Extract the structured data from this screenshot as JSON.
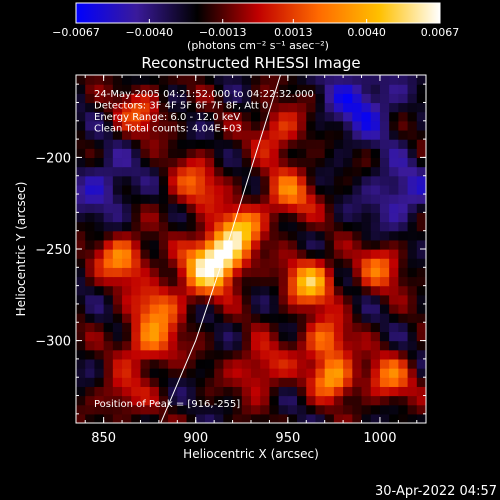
{
  "chart_data": {
    "type": "heatmap",
    "title": "Reconstructed RHESSI Image",
    "xlabel": "Heliocentric X (arcsec)",
    "ylabel": "Heliocentric Y (arcsec)",
    "xlim": [
      835,
      1025
    ],
    "ylim": [
      -345,
      -155
    ],
    "x_ticks": [
      850,
      900,
      950,
      1000
    ],
    "y_ticks": [
      -200,
      -250,
      -300
    ],
    "x_tick_labels": [
      "850",
      "900",
      "950",
      "1000"
    ],
    "y_tick_labels": [
      "−200",
      "−250",
      "−300"
    ],
    "colorbar": {
      "range": [
        -0.0067,
        0.0067
      ],
      "ticks": [
        -0.0067,
        -0.004,
        -0.0013,
        0.0013,
        0.004,
        0.0067
      ],
      "tick_labels": [
        "−0.0067",
        "−0.0040",
        "−0.0013",
        "0.0013",
        "0.0040",
        "0.0067"
      ],
      "unit_label": "(photons cm⁻² s⁻¹ asec⁻²)",
      "colors": [
        "#0000ff",
        "#3a1a9a",
        "#000000",
        "#c00000",
        "#ff6a00",
        "#ffc000",
        "#ffffff"
      ]
    },
    "annotations": [
      "24-May-2005 04:21:52.000 to 04:22:32.000",
      "Detectors: 3F 4F 5F 6F 7F 8F, Att 0",
      "Energy Range: 6.0 - 12.0 keV",
      "Clean     Total counts: 4.04E+03"
    ],
    "peak_label": "Position of Peak = [916,-255]",
    "peak": [
      916,
      -255
    ],
    "limb_points": [
      [
        881,
        -345
      ],
      [
        900,
        -300
      ],
      [
        915,
        -255
      ],
      [
        932,
        -200
      ],
      [
        946,
        -155
      ]
    ],
    "sources": [
      {
        "x": 915,
        "y": -252,
        "amp": 1.0,
        "sigma": 9
      },
      {
        "x": 905,
        "y": -262,
        "amp": 0.75,
        "sigma": 10
      },
      {
        "x": 925,
        "y": -238,
        "amp": 0.7,
        "sigma": 8
      },
      {
        "x": 962,
        "y": -268,
        "amp": 0.85,
        "sigma": 9
      },
      {
        "x": 970,
        "y": -300,
        "amp": 0.6,
        "sigma": 9
      },
      {
        "x": 975,
        "y": -320,
        "amp": 0.75,
        "sigma": 8
      },
      {
        "x": 860,
        "y": -255,
        "amp": 0.7,
        "sigma": 9
      },
      {
        "x": 875,
        "y": -300,
        "amp": 0.6,
        "sigma": 10
      },
      {
        "x": 880,
        "y": -280,
        "amp": 0.5,
        "sigma": 9
      },
      {
        "x": 900,
        "y": -215,
        "amp": 0.5,
        "sigma": 10
      },
      {
        "x": 870,
        "y": -175,
        "amp": 0.45,
        "sigma": 9
      },
      {
        "x": 945,
        "y": -185,
        "amp": 0.45,
        "sigma": 10
      },
      {
        "x": 950,
        "y": -220,
        "amp": 0.55,
        "sigma": 10
      },
      {
        "x": 1000,
        "y": -260,
        "amp": 0.5,
        "sigma": 9
      },
      {
        "x": 1005,
        "y": -320,
        "amp": 0.55,
        "sigma": 9
      },
      {
        "x": 935,
        "y": -315,
        "amp": 0.45,
        "sigma": 10
      },
      {
        "x": 860,
        "y": -330,
        "amp": 0.35,
        "sigma": 9
      },
      {
        "x": 990,
        "y": -170,
        "amp": -0.45,
        "sigma": 14
      },
      {
        "x": 1010,
        "y": -220,
        "amp": -0.4,
        "sigma": 12
      },
      {
        "x": 850,
        "y": -215,
        "amp": -0.35,
        "sigma": 12
      }
    ]
  },
  "footer": {
    "timestamp": "30-Apr-2022 04:57"
  }
}
